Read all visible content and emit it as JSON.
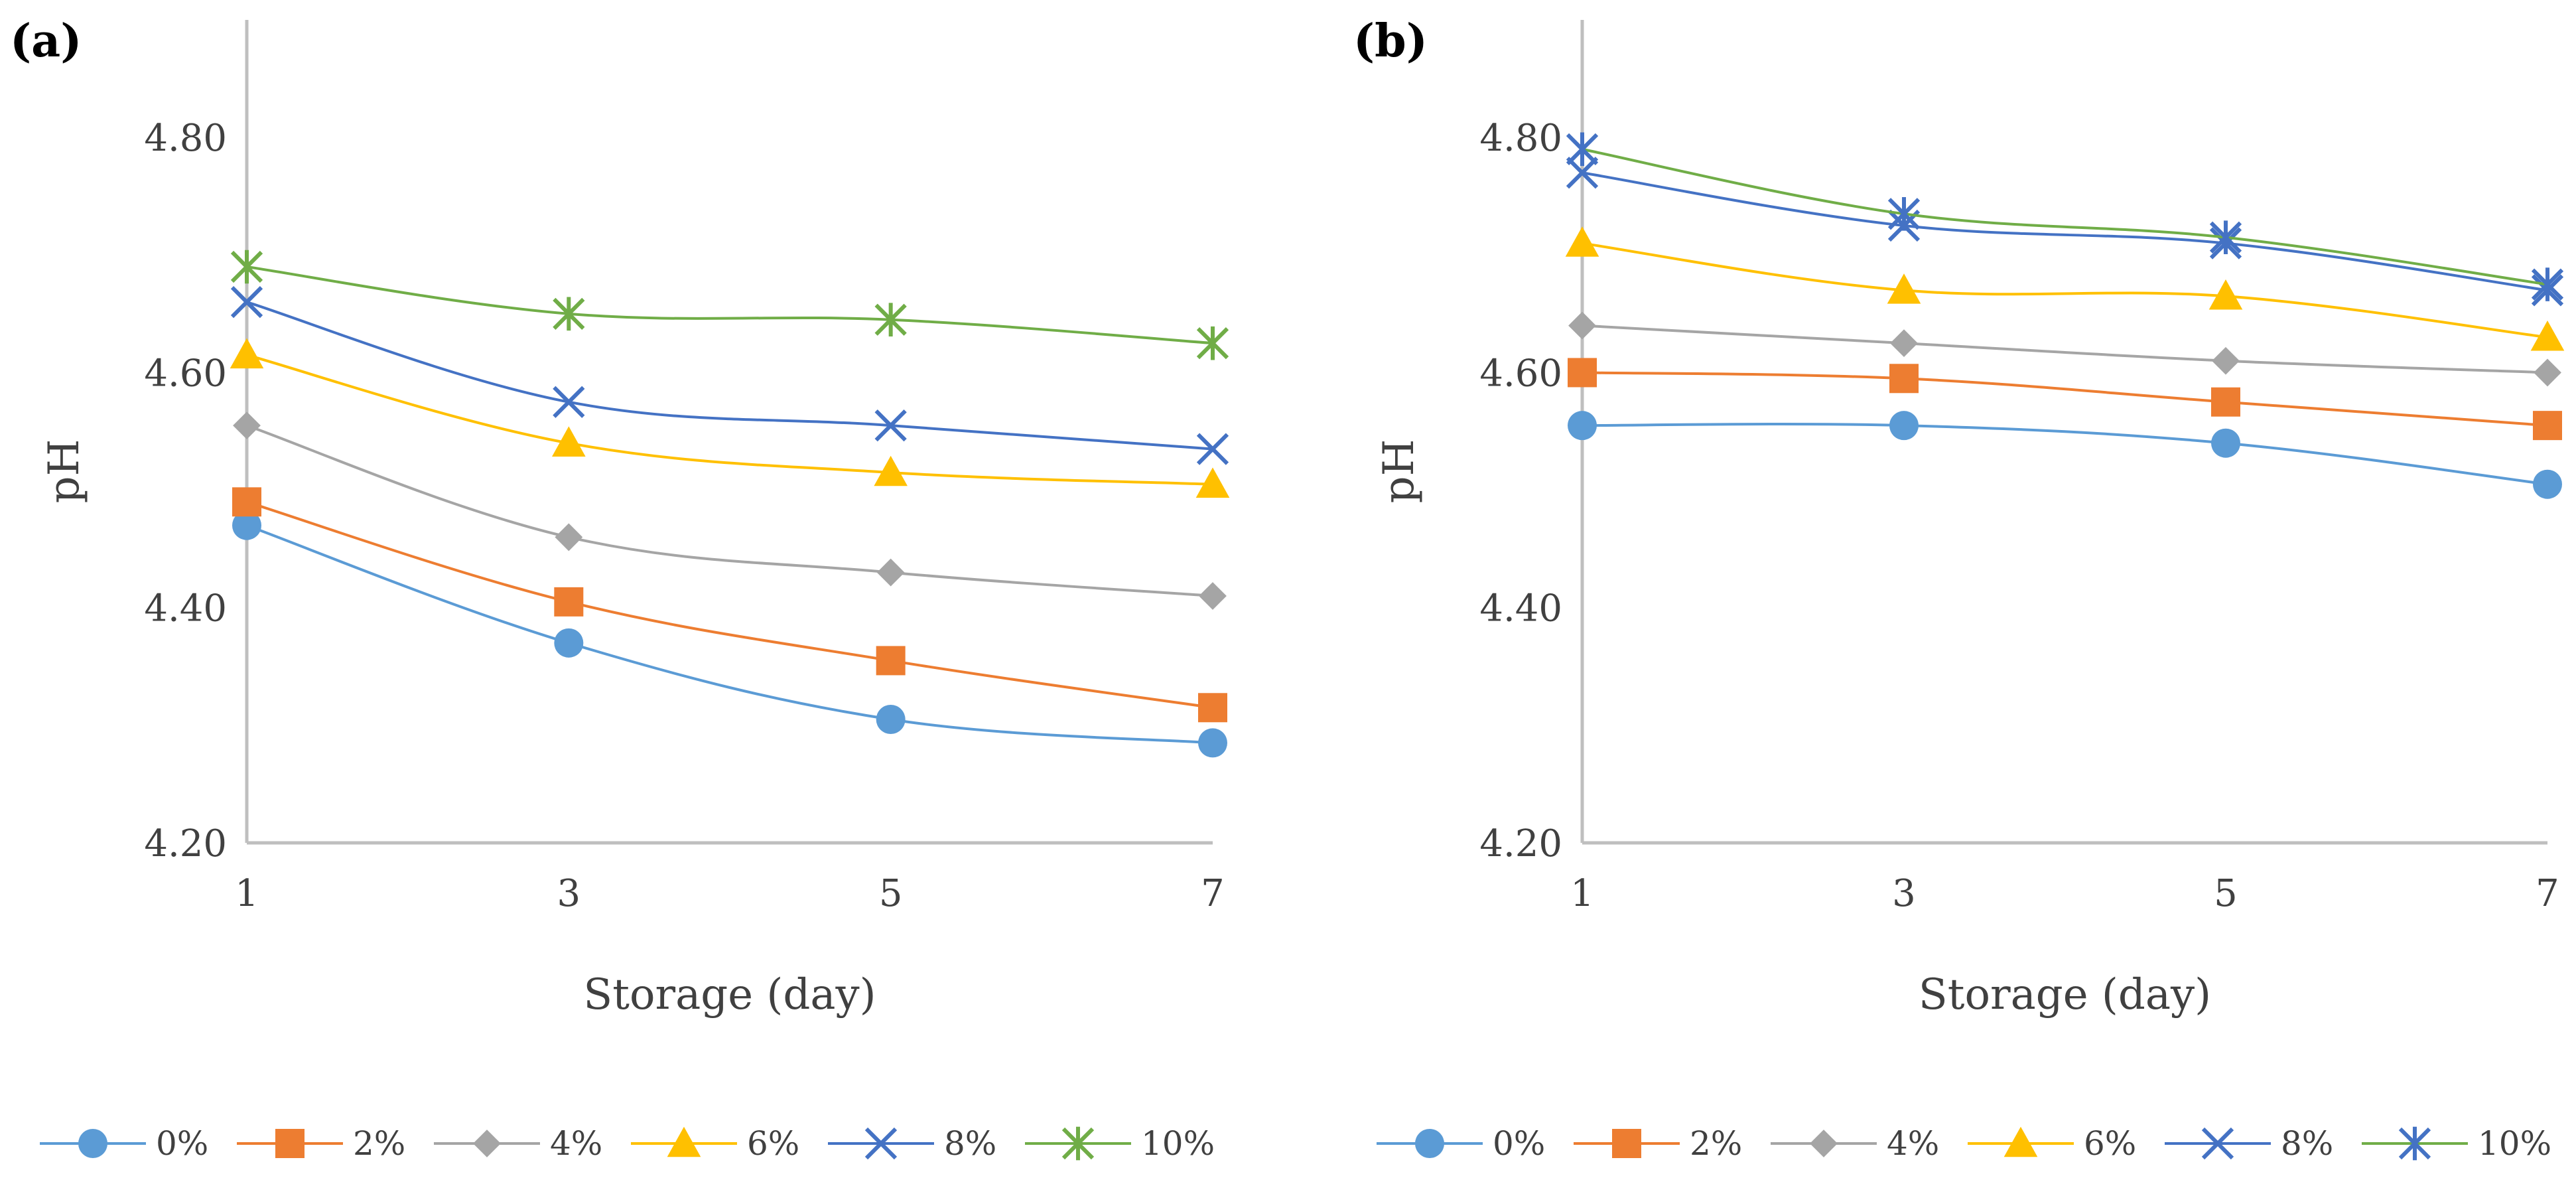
{
  "chart_data": [
    {
      "panel_label": "(a)",
      "type": "line",
      "xlabel": "Storage (day)",
      "ylabel": "pH",
      "x": [
        1,
        3,
        5,
        7
      ],
      "x_tick_labels": [
        "1",
        "3",
        "5",
        "7"
      ],
      "ylim": [
        4.2,
        4.9
      ],
      "y_tick_labels": [
        "4.20",
        "4.40",
        "4.60",
        "4.80"
      ],
      "y_ticks": [
        4.2,
        4.4,
        4.6,
        4.8
      ],
      "grid": false,
      "legend_position": "bottom",
      "series": [
        {
          "name": "0%",
          "values": [
            4.47,
            4.37,
            4.305,
            4.285
          ],
          "color": "#5B9BD5",
          "marker": "circle"
        },
        {
          "name": "2%",
          "values": [
            4.49,
            4.405,
            4.355,
            4.315
          ],
          "color": "#ED7D31",
          "marker": "square"
        },
        {
          "name": "4%",
          "values": [
            4.555,
            4.46,
            4.43,
            4.41
          ],
          "color": "#A5A5A5",
          "marker": "diamond"
        },
        {
          "name": "6%",
          "values": [
            4.615,
            4.54,
            4.515,
            4.505
          ],
          "color": "#FFC000",
          "marker": "triangle"
        },
        {
          "name": "8%",
          "values": [
            4.66,
            4.575,
            4.555,
            4.535
          ],
          "color": "#4472C4",
          "marker": "x"
        },
        {
          "name": "10%",
          "values": [
            4.69,
            4.65,
            4.645,
            4.625
          ],
          "color": "#70AD47",
          "marker": "star"
        }
      ]
    },
    {
      "panel_label": "(b)",
      "type": "line",
      "xlabel": "Storage (day)",
      "ylabel": "pH",
      "x": [
        1,
        3,
        5,
        7
      ],
      "x_tick_labels": [
        "1",
        "3",
        "5",
        "7"
      ],
      "ylim": [
        4.2,
        4.9
      ],
      "y_tick_labels": [
        "4.20",
        "4.40",
        "4.60",
        "4.80"
      ],
      "y_ticks": [
        4.2,
        4.4,
        4.6,
        4.8
      ],
      "grid": false,
      "legend_position": "bottom",
      "series": [
        {
          "name": "0%",
          "values": [
            4.555,
            4.555,
            4.54,
            4.505
          ],
          "color": "#5B9BD5",
          "marker": "circle"
        },
        {
          "name": "2%",
          "values": [
            4.6,
            4.595,
            4.575,
            4.555
          ],
          "color": "#ED7D31",
          "marker": "square"
        },
        {
          "name": "4%",
          "values": [
            4.64,
            4.625,
            4.61,
            4.6
          ],
          "color": "#A5A5A5",
          "marker": "diamond"
        },
        {
          "name": "6%",
          "values": [
            4.71,
            4.67,
            4.665,
            4.63
          ],
          "color": "#FFC000",
          "marker": "triangle"
        },
        {
          "name": "8%",
          "values": [
            4.77,
            4.725,
            4.71,
            4.67
          ],
          "color": "#4472C4",
          "marker": "x"
        },
        {
          "name": "10%",
          "values": [
            4.79,
            4.735,
            4.715,
            4.675
          ],
          "color": "#4472C4",
          "line_color": "#70AD47",
          "marker": "asterisk"
        }
      ]
    }
  ]
}
